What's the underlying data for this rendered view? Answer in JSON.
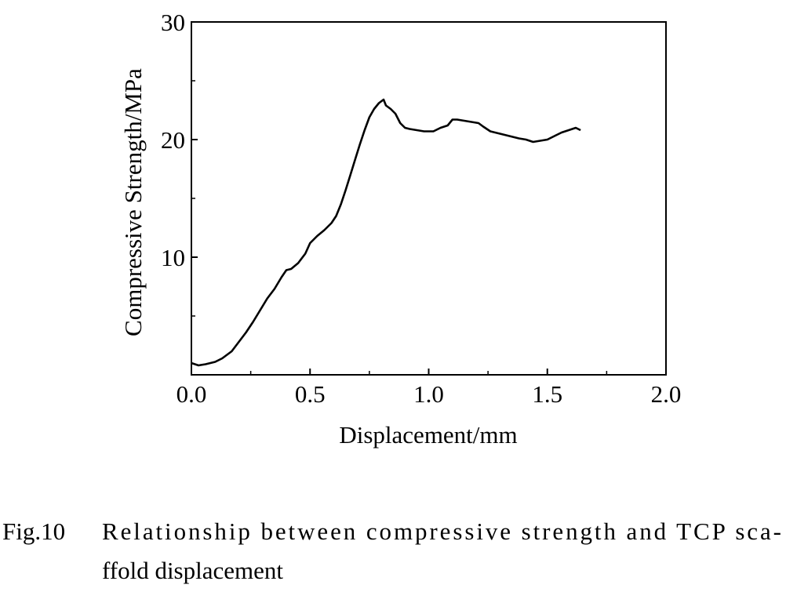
{
  "chart_data": {
    "type": "line",
    "title": "",
    "xlabel": "Displacement/mm",
    "ylabel": "Compressive Strength/MPa",
    "xlim": [
      0.0,
      2.0
    ],
    "ylim": [
      0,
      30
    ],
    "x_ticks": [
      "0.0",
      "0.5",
      "1.0",
      "1.5",
      "2.0"
    ],
    "y_ticks": [
      "10",
      "20",
      "30"
    ],
    "grid": false,
    "legend": "none",
    "line_color": "#000000",
    "series": [
      {
        "points": [
          [
            0.0,
            1.0
          ],
          [
            0.03,
            0.8
          ],
          [
            0.06,
            0.9
          ],
          [
            0.1,
            1.1
          ],
          [
            0.13,
            1.4
          ],
          [
            0.17,
            2.0
          ],
          [
            0.2,
            2.8
          ],
          [
            0.23,
            3.6
          ],
          [
            0.26,
            4.5
          ],
          [
            0.29,
            5.5
          ],
          [
            0.32,
            6.5
          ],
          [
            0.35,
            7.3
          ],
          [
            0.38,
            8.3
          ],
          [
            0.4,
            8.9
          ],
          [
            0.42,
            9.0
          ],
          [
            0.45,
            9.5
          ],
          [
            0.48,
            10.3
          ],
          [
            0.5,
            11.2
          ],
          [
            0.53,
            11.8
          ],
          [
            0.56,
            12.3
          ],
          [
            0.59,
            12.9
          ],
          [
            0.61,
            13.5
          ],
          [
            0.63,
            14.5
          ],
          [
            0.65,
            15.7
          ],
          [
            0.67,
            17.0
          ],
          [
            0.69,
            18.3
          ],
          [
            0.71,
            19.6
          ],
          [
            0.73,
            20.8
          ],
          [
            0.75,
            21.9
          ],
          [
            0.77,
            22.6
          ],
          [
            0.79,
            23.1
          ],
          [
            0.81,
            23.4
          ],
          [
            0.82,
            22.9
          ],
          [
            0.84,
            22.6
          ],
          [
            0.86,
            22.2
          ],
          [
            0.88,
            21.4
          ],
          [
            0.9,
            21.0
          ],
          [
            0.92,
            20.9
          ],
          [
            0.95,
            20.8
          ],
          [
            0.98,
            20.7
          ],
          [
            1.0,
            20.7
          ],
          [
            1.02,
            20.7
          ],
          [
            1.05,
            21.0
          ],
          [
            1.08,
            21.2
          ],
          [
            1.1,
            21.7
          ],
          [
            1.12,
            21.7
          ],
          [
            1.15,
            21.6
          ],
          [
            1.18,
            21.5
          ],
          [
            1.21,
            21.4
          ],
          [
            1.23,
            21.1
          ],
          [
            1.26,
            20.7
          ],
          [
            1.3,
            20.5
          ],
          [
            1.34,
            20.3
          ],
          [
            1.38,
            20.1
          ],
          [
            1.41,
            20.0
          ],
          [
            1.44,
            19.8
          ],
          [
            1.47,
            19.9
          ],
          [
            1.5,
            20.0
          ],
          [
            1.53,
            20.3
          ],
          [
            1.56,
            20.6
          ],
          [
            1.59,
            20.8
          ],
          [
            1.62,
            21.0
          ],
          [
            1.64,
            20.8
          ]
        ]
      }
    ]
  },
  "caption": {
    "label": "Fig.10",
    "line1": "Relationship between compressive strength and TCP sca-",
    "line2": "ffold displacement"
  }
}
